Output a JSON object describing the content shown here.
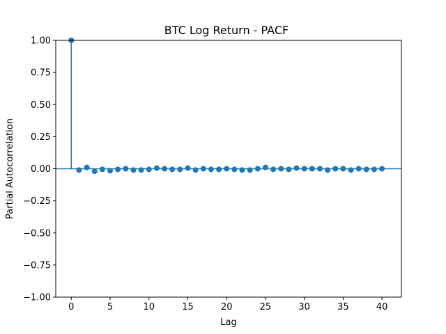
{
  "chart_data": {
    "type": "scatter",
    "subtype": "pacf-stem",
    "title": "BTC Log Return - PACF",
    "xlabel": "Lag",
    "ylabel": "Partial Autocorrelation",
    "xlim": [
      -2,
      42.5
    ],
    "ylim": [
      -1.0,
      1.0
    ],
    "xticks": [
      "0",
      "5",
      "10",
      "15",
      "20",
      "25",
      "30",
      "35",
      "40"
    ],
    "xtick_values": [
      0,
      5,
      10,
      15,
      20,
      25,
      30,
      35,
      40
    ],
    "yticks": [
      "1.00",
      "0.75",
      "0.50",
      "0.25",
      "0.00",
      "−0.25",
      "−0.50",
      "−0.75",
      "−1.00"
    ],
    "ytick_values": [
      1.0,
      0.75,
      0.5,
      0.25,
      0.0,
      -0.25,
      -0.5,
      -0.75,
      -1.0
    ],
    "grid": false,
    "colors": {
      "series": "#1f77b4",
      "axes": "#000000"
    },
    "lags": [
      0,
      1,
      2,
      3,
      4,
      5,
      6,
      7,
      8,
      9,
      10,
      11,
      12,
      13,
      14,
      15,
      16,
      17,
      18,
      19,
      20,
      21,
      22,
      23,
      24,
      25,
      26,
      27,
      28,
      29,
      30,
      31,
      32,
      33,
      34,
      35,
      36,
      37,
      38,
      39,
      40
    ],
    "values": [
      1.0,
      -0.01,
      0.01,
      -0.02,
      -0.005,
      -0.015,
      -0.005,
      0.0,
      -0.01,
      -0.01,
      -0.005,
      0.005,
      0.0,
      -0.005,
      -0.005,
      0.005,
      -0.01,
      0.0,
      -0.005,
      -0.005,
      0.0,
      -0.005,
      -0.01,
      -0.01,
      0.0,
      0.01,
      -0.005,
      0.0,
      -0.005,
      0.005,
      0.0,
      0.0,
      0.0,
      -0.01,
      0.0,
      0.0,
      -0.01,
      0.0,
      -0.005,
      -0.005,
      0.0
    ]
  }
}
